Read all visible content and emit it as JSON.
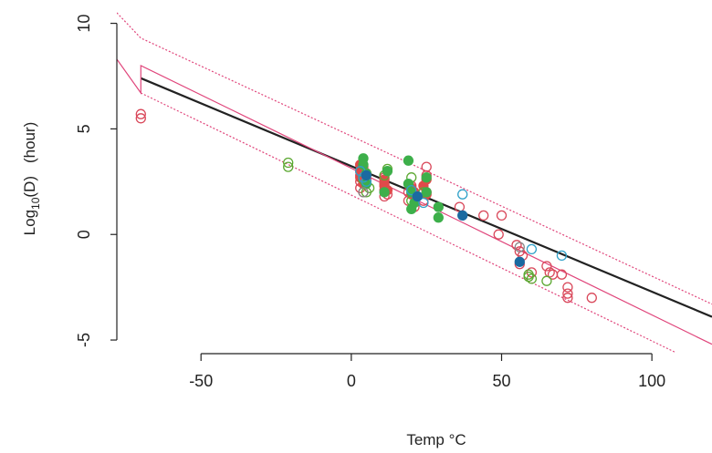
{
  "chart_data": {
    "type": "scatter",
    "title": "",
    "xlabel": "Temp °C",
    "ylabel_parts": [
      "Log",
      "10",
      "(D)",
      "(hour)"
    ],
    "xlim": [
      -78,
      120
    ],
    "ylim": [
      -5.3,
      10.5
    ],
    "x_ticks": [
      -50,
      0,
      50,
      100
    ],
    "x_tick_labels": [
      "-50",
      "0",
      "50",
      "100"
    ],
    "y_ticks": [
      -5,
      0,
      5,
      10
    ],
    "y_tick_labels": [
      "-5",
      "0",
      "5",
      "10"
    ],
    "grid": false,
    "legend": "none",
    "fit_lines": [
      {
        "role": "regression",
        "color": "#222222",
        "points": [
          [
            -70,
            7.4
          ],
          [
            120,
            -3.9
          ]
        ]
      },
      {
        "role": "fit",
        "color": "#e0457b",
        "points": [
          [
            -78,
            8.3
          ],
          [
            -70,
            6.7
          ],
          [
            -70,
            8.0
          ],
          [
            120,
            -5.2
          ]
        ]
      },
      {
        "role": "upper-bound",
        "color": "#e0457b",
        "dash": "2,2",
        "points": [
          [
            -78,
            10.5
          ],
          [
            -70,
            9.3
          ],
          [
            120,
            -3.3
          ]
        ]
      },
      {
        "role": "lower-bound",
        "color": "#e0457b",
        "dash": "2,2",
        "points": [
          [
            -70,
            6.7
          ],
          [
            108,
            -5.6
          ]
        ]
      }
    ],
    "series": [
      {
        "color": "#d9485a",
        "style": "open",
        "points": [
          [
            -70,
            5.7
          ],
          [
            -70,
            5.5
          ],
          [
            3,
            3.3
          ],
          [
            3,
            3.0
          ],
          [
            3,
            2.8
          ],
          [
            3,
            2.5
          ],
          [
            3,
            2.2
          ],
          [
            4,
            2.0
          ],
          [
            4,
            3.1
          ],
          [
            5,
            2.6
          ],
          [
            11,
            1.8
          ],
          [
            11,
            2.1
          ],
          [
            11,
            2.4
          ],
          [
            11,
            2.7
          ],
          [
            12,
            1.9
          ],
          [
            19,
            1.6
          ],
          [
            19,
            2.0
          ],
          [
            20,
            2.3
          ],
          [
            21,
            1.3
          ],
          [
            24,
            1.6
          ],
          [
            25,
            2.0
          ],
          [
            25,
            3.2
          ],
          [
            25,
            2.8
          ],
          [
            36,
            1.3
          ],
          [
            44,
            0.9
          ],
          [
            49,
            0.0
          ],
          [
            50,
            0.9
          ],
          [
            55,
            -0.5
          ],
          [
            56,
            -0.8
          ],
          [
            56,
            -1.4
          ],
          [
            57,
            -1.0
          ],
          [
            60,
            -1.8
          ],
          [
            65,
            -1.5
          ],
          [
            66,
            -1.8
          ],
          [
            67,
            -1.9
          ],
          [
            70,
            -1.9
          ],
          [
            72,
            -2.5
          ],
          [
            72,
            -2.8
          ],
          [
            72,
            -3.0
          ],
          [
            80,
            -3.0
          ]
        ]
      },
      {
        "color": "#e04a4a",
        "style": "filled",
        "points": [
          [
            3,
            3.3
          ],
          [
            3,
            3.0
          ],
          [
            3,
            2.7
          ],
          [
            4,
            2.4
          ],
          [
            4,
            3.2
          ],
          [
            5,
            2.9
          ],
          [
            11,
            2.6
          ],
          [
            11,
            2.3
          ],
          [
            12,
            2.1
          ],
          [
            20,
            2.2
          ],
          [
            20,
            1.9
          ],
          [
            21,
            2.0
          ],
          [
            24,
            2.3
          ],
          [
            25,
            1.9
          ],
          [
            25,
            2.6
          ]
        ]
      },
      {
        "color": "#5ca832",
        "style": "open",
        "points": [
          [
            -21,
            3.4
          ],
          [
            -21,
            3.2
          ],
          [
            4,
            2.6
          ],
          [
            5,
            2.0
          ],
          [
            6,
            2.2
          ],
          [
            11,
            2.8
          ],
          [
            12,
            3.1
          ],
          [
            20,
            2.7
          ],
          [
            20,
            1.6
          ],
          [
            24,
            2.0
          ],
          [
            59,
            -1.9
          ],
          [
            59,
            -2.0
          ],
          [
            60,
            -2.1
          ],
          [
            65,
            -2.2
          ]
        ]
      },
      {
        "color": "#3daf4a",
        "style": "filled",
        "points": [
          [
            4,
            3.6
          ],
          [
            4,
            3.3
          ],
          [
            5,
            2.9
          ],
          [
            5,
            2.4
          ],
          [
            11,
            2.0
          ],
          [
            12,
            3.0
          ],
          [
            19,
            3.5
          ],
          [
            19,
            2.4
          ],
          [
            20,
            2.0
          ],
          [
            20,
            1.2
          ],
          [
            21,
            1.5
          ],
          [
            25,
            2.7
          ],
          [
            25,
            2.0
          ],
          [
            29,
            1.3
          ],
          [
            29,
            0.8
          ]
        ]
      },
      {
        "color": "#2ea0c8",
        "style": "open",
        "points": [
          [
            3,
            3.0
          ],
          [
            4,
            2.7
          ],
          [
            5,
            2.5
          ],
          [
            20,
            2.1
          ],
          [
            22,
            1.8
          ],
          [
            24,
            1.5
          ],
          [
            37,
            1.9
          ],
          [
            60,
            -0.7
          ],
          [
            70,
            -1.0
          ]
        ]
      },
      {
        "color": "#1b6aa0",
        "style": "filled",
        "points": [
          [
            5,
            2.8
          ],
          [
            22,
            1.8
          ],
          [
            37,
            0.9
          ],
          [
            56,
            -1.3
          ]
        ]
      },
      {
        "color": "#888888",
        "style": "open",
        "points": [
          [
            4,
            2.0
          ],
          [
            56,
            -0.6
          ]
        ]
      }
    ]
  }
}
